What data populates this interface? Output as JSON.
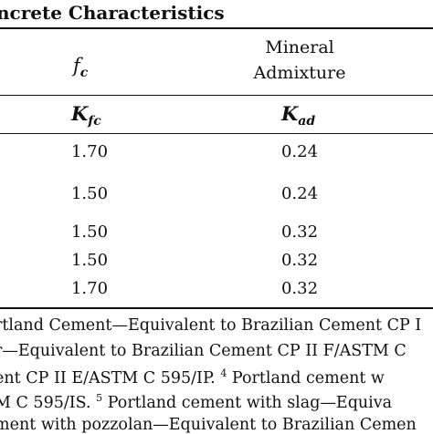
{
  "caption": {
    "title": "ncrete Characteristics"
  },
  "header": {
    "col_fc_symbol": "f",
    "col_fc_sub": "c",
    "col_admix_line1": "Mineral",
    "col_admix_line2": "Admixture",
    "col_kfc_symbol": "K",
    "col_kfc_sub": "fc",
    "col_kad_symbol": "K",
    "col_kad_sub": "ad"
  },
  "rows": [
    {
      "kfc": "1.70",
      "kad": "0.24"
    },
    {
      "kfc": "1.50",
      "kad": "0.24"
    },
    {
      "kfc": "1.50",
      "kad": "0.32"
    },
    {
      "kfc": "1.50",
      "kad": "0.32"
    },
    {
      "kfc": "1.70",
      "kad": "0.32"
    }
  ],
  "footnotes": {
    "line1": "rtland Cement—Equivalent to Brazilian Cement CP I",
    "line2": "r—Equivalent to Brazilian Cement CP II F/ASTM C",
    "line3a": "ent CP II E/ASTM C 595/IP.",
    "line3_mark": "4",
    "line3b": " Portland cement w",
    "line4a": "M C 595/IS.",
    "line4_mark": "5",
    "line4b": " Portland cement with slag—Equiva",
    "line5": "ment with pozzolan—Equivalent to Brazilian Cemen"
  }
}
